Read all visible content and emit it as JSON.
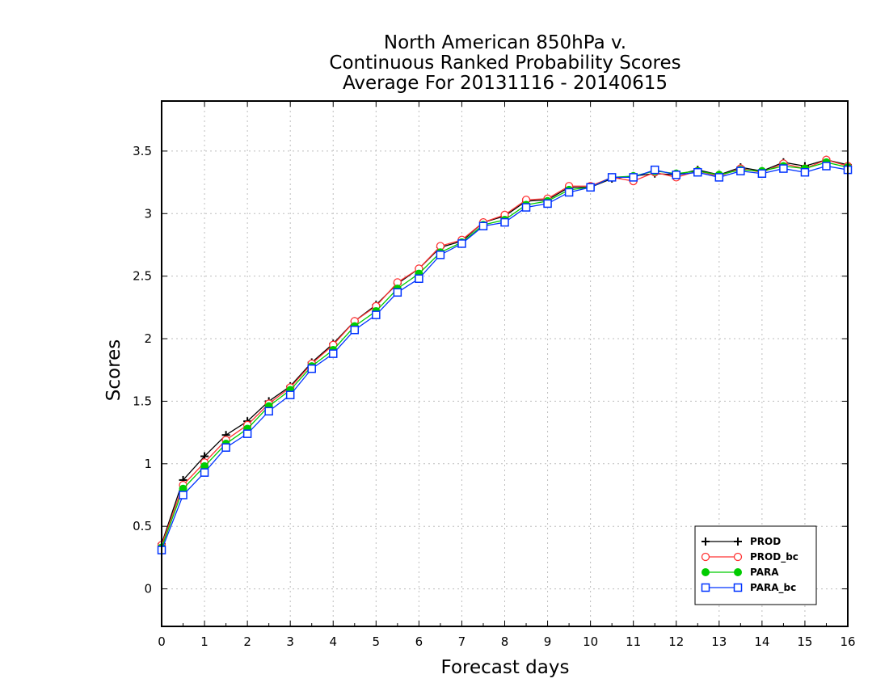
{
  "chart_data": {
    "type": "line",
    "title": [
      "North American 850hPa v.",
      "Continuous Ranked Probability Scores",
      "Average For 20131116 - 20140615"
    ],
    "xlabel": "Forecast days",
    "ylabel": "Scores",
    "xlim": [
      0,
      16
    ],
    "ylim": [
      -0.3,
      3.9
    ],
    "xticks": [
      0,
      1,
      2,
      3,
      4,
      5,
      6,
      7,
      8,
      9,
      10,
      11,
      12,
      13,
      14,
      15,
      16
    ],
    "yticks": [
      0,
      0.5,
      1,
      1.5,
      2,
      2.5,
      3,
      3.5
    ],
    "ytick_labels": [
      "0",
      "0.5",
      "1",
      "1.5",
      "2",
      "2.5",
      "3",
      "3.5"
    ],
    "grid": true,
    "legend_position": "bottom-right",
    "x": [
      0,
      0.5,
      1,
      1.5,
      2,
      2.5,
      3,
      3.5,
      4,
      4.5,
      5,
      5.5,
      6,
      6.5,
      7,
      7.5,
      8,
      8.5,
      9,
      9.5,
      10,
      10.5,
      11,
      11.5,
      12,
      12.5,
      13,
      13.5,
      14,
      14.5,
      15,
      15.5,
      16
    ],
    "series": [
      {
        "name": "PROD",
        "color": "#000000",
        "marker": "plus",
        "values": [
          0.36,
          0.87,
          1.06,
          1.23,
          1.34,
          1.5,
          1.62,
          1.81,
          1.96,
          2.14,
          2.27,
          2.44,
          2.56,
          2.73,
          2.78,
          2.93,
          2.98,
          3.1,
          3.11,
          3.21,
          3.21,
          3.28,
          3.3,
          3.32,
          3.31,
          3.35,
          3.31,
          3.37,
          3.34,
          3.41,
          3.38,
          3.43,
          3.39
        ]
      },
      {
        "name": "PROD_bc",
        "color": "#ff3333",
        "marker": "circle-open",
        "values": [
          0.35,
          0.83,
          1.01,
          1.19,
          1.31,
          1.48,
          1.61,
          1.8,
          1.95,
          2.14,
          2.26,
          2.45,
          2.56,
          2.74,
          2.79,
          2.93,
          2.99,
          3.11,
          3.12,
          3.22,
          3.22,
          3.29,
          3.26,
          3.33,
          3.29,
          3.34,
          3.3,
          3.36,
          3.33,
          3.4,
          3.36,
          3.43,
          3.38
        ]
      },
      {
        "name": "PARA",
        "color": "#00cc00",
        "marker": "circle-filled",
        "values": [
          0.33,
          0.8,
          0.98,
          1.16,
          1.28,
          1.46,
          1.59,
          1.78,
          1.91,
          2.1,
          2.22,
          2.4,
          2.52,
          2.69,
          2.77,
          2.91,
          2.95,
          3.07,
          3.1,
          3.19,
          3.21,
          3.29,
          3.3,
          3.34,
          3.32,
          3.34,
          3.31,
          3.35,
          3.34,
          3.38,
          3.36,
          3.41,
          3.37
        ]
      },
      {
        "name": "PARA_bc",
        "color": "#0033ff",
        "marker": "square-open",
        "values": [
          0.31,
          0.75,
          0.93,
          1.13,
          1.24,
          1.42,
          1.55,
          1.76,
          1.88,
          2.07,
          2.19,
          2.37,
          2.48,
          2.67,
          2.76,
          2.9,
          2.93,
          3.05,
          3.08,
          3.17,
          3.21,
          3.29,
          3.29,
          3.35,
          3.31,
          3.33,
          3.29,
          3.34,
          3.32,
          3.36,
          3.33,
          3.38,
          3.35
        ]
      }
    ]
  }
}
